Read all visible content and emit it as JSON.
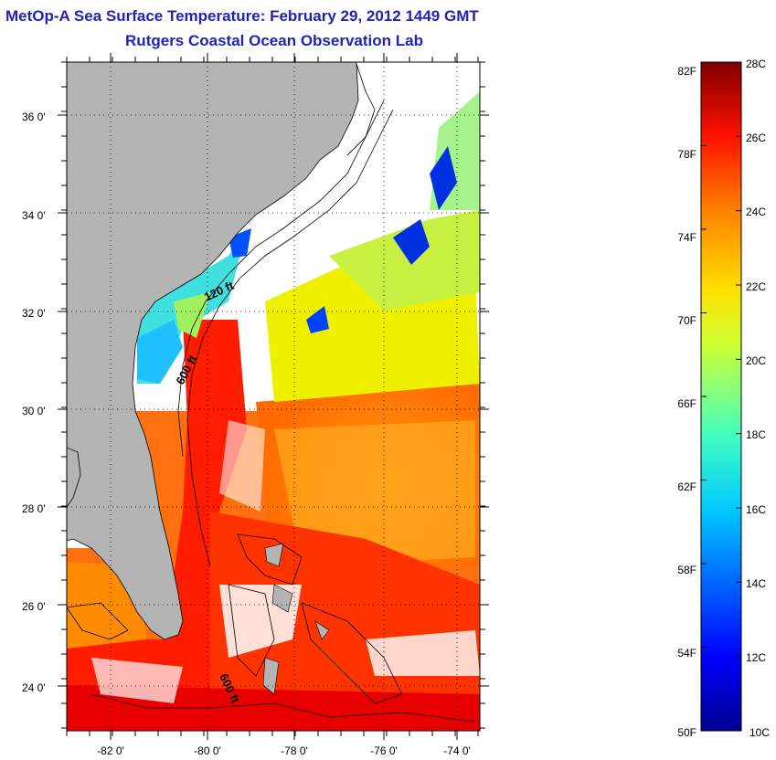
{
  "title": "MetOp-A Sea Surface Temperature:  February 29, 2012 1449 GMT",
  "subtitle": "Rutgers Coastal Ocean Observation Lab",
  "map": {
    "lat_ticks": [
      "36 0'",
      "34 0'",
      "32 0'",
      "30 0'",
      "28 0'",
      "26 0'",
      "24 0'"
    ],
    "lon_ticks": [
      "-82 0'",
      "-80 0'",
      "-78 0'",
      "-76 0'",
      "-74 0'"
    ],
    "contour_labels": [
      "120 ft",
      "600 ft",
      "600 ft"
    ],
    "colors": {
      "land": "#b4b4b4",
      "coast_line": "#000000",
      "no_data": "#ffffff"
    }
  },
  "colorbar": {
    "fahrenheit_labels": [
      "82F",
      "78F",
      "74F",
      "70F",
      "66F",
      "62F",
      "58F",
      "54F",
      "50F"
    ],
    "celsius_labels": [
      "28C",
      "26C",
      "24C",
      "22C",
      "20C",
      "18C",
      "16C",
      "14C",
      "12C",
      "10C"
    ],
    "range_celsius": [
      10,
      28
    ],
    "colormap": [
      "#00008f",
      "#0000ff",
      "#0080ff",
      "#00ffff",
      "#80ff80",
      "#ffff00",
      "#ff8000",
      "#ff0000",
      "#800000"
    ]
  }
}
